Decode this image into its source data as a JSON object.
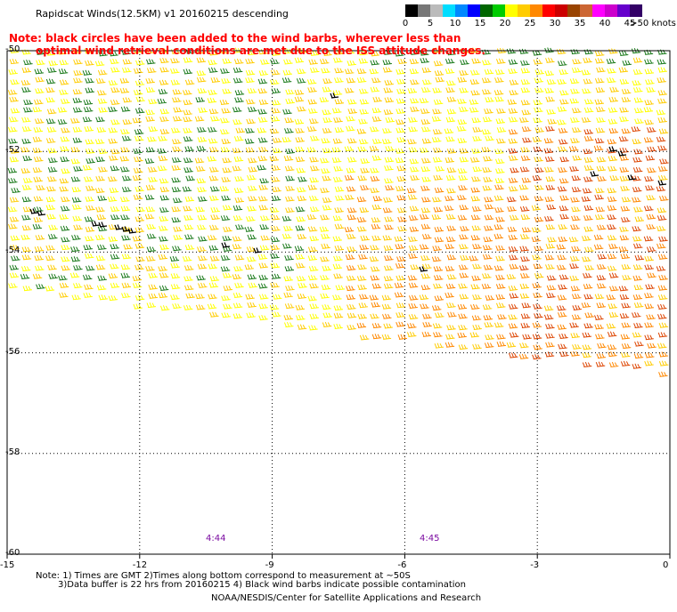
{
  "title": "Rapidscat Winds(12.5KM) v1 20160215 descending",
  "note": {
    "line1": "Note: black circles have been added to the wind barbs, wherever less than",
    "line2": "optimal wind retrieval conditions are met due to the ISS attitude changes."
  },
  "colorbar": {
    "unit": ">50 knots",
    "labels": [
      "0",
      "5",
      "10",
      "15",
      "20",
      "25",
      "30",
      "35",
      "40",
      "45"
    ],
    "colors": [
      "#000000",
      "#777777",
      "#bbbbbb",
      "#00ddff",
      "#0088ff",
      "#0000ff",
      "#006600",
      "#00cc00",
      "#ffff00",
      "#ffcc00",
      "#ff8800",
      "#ff0000",
      "#cc0000",
      "#994400",
      "#cc6633",
      "#ff00ff",
      "#cc00cc",
      "#6600cc",
      "#330066"
    ]
  },
  "map": {
    "lon_range": [
      -15,
      0
    ],
    "lat_range": [
      -60,
      -50
    ],
    "x_ticks": [
      "-15",
      "-12",
      "-9",
      "-6",
      "-3",
      "0"
    ],
    "y_ticks": [
      "-50",
      "-52",
      "-54",
      "-56",
      "-58",
      "-60"
    ],
    "grid": "dotted",
    "times": [
      "4:44",
      "4:45"
    ],
    "wind_palette": {
      "low": "#1a7a1a",
      "mid": "#ffff00",
      "high": "#ffcc00",
      "strong": "#ff8800",
      "very_strong": "#dd4400",
      "flagged": "#000000"
    }
  },
  "footer": {
    "line1": "Note: 1) Times are GMT 2)Times along bottom correspond to measurement at ~50S",
    "line2": "3)Data buffer is 22 hrs from 20160215 4) Black wind barbs indicate possible contamination",
    "line3": "NOAA/NESDIS/Center for Satellite Applications and Research"
  }
}
